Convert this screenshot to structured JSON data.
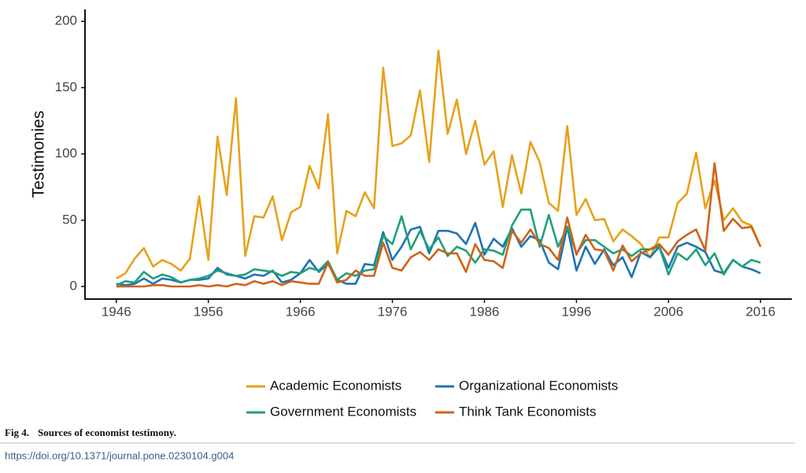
{
  "chart_data": {
    "type": "line",
    "ylabel": "Testimonies",
    "x": [
      1946,
      1947,
      1948,
      1949,
      1950,
      1951,
      1952,
      1953,
      1954,
      1955,
      1956,
      1957,
      1958,
      1959,
      1960,
      1961,
      1962,
      1963,
      1964,
      1965,
      1966,
      1967,
      1968,
      1969,
      1970,
      1971,
      1972,
      1973,
      1974,
      1975,
      1976,
      1977,
      1978,
      1979,
      1980,
      1981,
      1982,
      1983,
      1984,
      1985,
      1986,
      1987,
      1988,
      1989,
      1990,
      1991,
      1992,
      1993,
      1994,
      1995,
      1996,
      1997,
      1998,
      1999,
      2000,
      2001,
      2002,
      2003,
      2004,
      2005,
      2006,
      2007,
      2008,
      2009,
      2010,
      2011,
      2012,
      2013,
      2014,
      2015,
      2016
    ],
    "series": [
      {
        "name": "Academic Economists",
        "color": "#e6a21a",
        "values": [
          6,
          10,
          21,
          29,
          15,
          20,
          17,
          12,
          21,
          68,
          20,
          113,
          69,
          142,
          23,
          53,
          52,
          68,
          35,
          56,
          60,
          91,
          74,
          130,
          25,
          57,
          53,
          71,
          59,
          165,
          106,
          108,
          114,
          148,
          94,
          178,
          115,
          141,
          100,
          125,
          92,
          102,
          60,
          99,
          70,
          109,
          94,
          63,
          57,
          121,
          54,
          66,
          50,
          51,
          34,
          43,
          38,
          32,
          22,
          37,
          37,
          63,
          70,
          101,
          59,
          80,
          50,
          59,
          49,
          46,
          30
        ]
      },
      {
        "name": "Organizational Economists",
        "color": "#1f73b5",
        "values": [
          2,
          1,
          2,
          6,
          2,
          6,
          5,
          3,
          5,
          5,
          6,
          14,
          9,
          8,
          6,
          9,
          8,
          12,
          3,
          5,
          10,
          20,
          11,
          17,
          5,
          2,
          2,
          17,
          16,
          41,
          20,
          30,
          43,
          45,
          25,
          42,
          42,
          40,
          32,
          48,
          24,
          36,
          30,
          44,
          30,
          38,
          35,
          18,
          13,
          45,
          12,
          30,
          17,
          28,
          16,
          22,
          7,
          26,
          22,
          30,
          14,
          30,
          33,
          30,
          26,
          12,
          10,
          20,
          15,
          13,
          10
        ]
      },
      {
        "name": "Government Economists",
        "color": "#1fa07a",
        "values": [
          1,
          4,
          3,
          11,
          6,
          9,
          7,
          3,
          5,
          6,
          8,
          12,
          10,
          8,
          9,
          13,
          12,
          11,
          8,
          11,
          10,
          14,
          12,
          19,
          5,
          10,
          8,
          12,
          13,
          38,
          32,
          53,
          28,
          42,
          28,
          37,
          23,
          30,
          27,
          18,
          28,
          27,
          24,
          46,
          58,
          58,
          30,
          54,
          30,
          45,
          25,
          35,
          35,
          30,
          25,
          28,
          23,
          28,
          28,
          30,
          9,
          25,
          20,
          28,
          16,
          25,
          9,
          20,
          15,
          20,
          18
        ]
      },
      {
        "name": "Think Tank Economists",
        "color": "#cf6316",
        "values": [
          0,
          0,
          0,
          0,
          1,
          1,
          0,
          0,
          0,
          1,
          0,
          1,
          0,
          2,
          1,
          4,
          2,
          4,
          1,
          4,
          3,
          2,
          2,
          18,
          3,
          5,
          12,
          8,
          8,
          33,
          14,
          12,
          22,
          26,
          20,
          28,
          25,
          25,
          11,
          32,
          20,
          19,
          14,
          42,
          33,
          43,
          32,
          29,
          20,
          52,
          24,
          39,
          28,
          27,
          12,
          31,
          19,
          25,
          28,
          32,
          24,
          34,
          39,
          43,
          27,
          93,
          42,
          51,
          44,
          45,
          30
        ]
      }
    ],
    "xlim": [
      1942.6,
      2019.4
    ],
    "xticks": [
      1946,
      1956,
      1966,
      1976,
      1986,
      1996,
      2006,
      2016
    ],
    "ylim": [
      -9.5,
      209
    ],
    "yticks": [
      0,
      50,
      100,
      150,
      200
    ],
    "grid": false
  },
  "caption": {
    "label": "Fig 4.",
    "text": "Sources of economist testimony."
  },
  "doi": "https://doi.org/10.1371/journal.pone.0230104.g004"
}
